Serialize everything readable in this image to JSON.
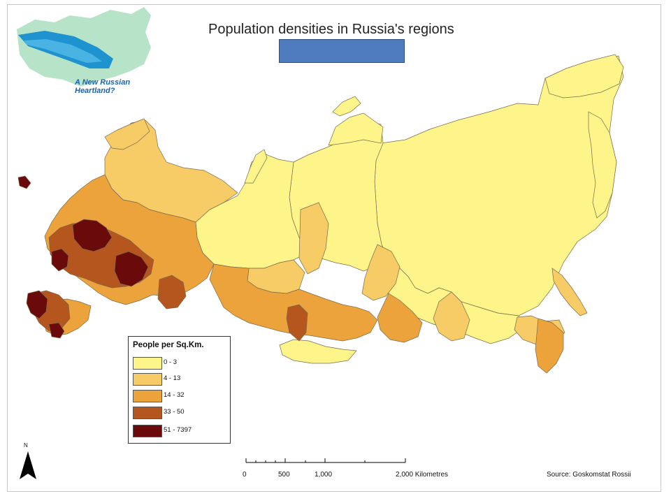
{
  "title": "Population densities in Russia's regions",
  "logo": {
    "line1": "A New Russian",
    "line2": "Heartland?"
  },
  "legend": {
    "title": "People per Sq.Km.",
    "classes": [
      {
        "label": "0 - 3",
        "color": "#fdf48a"
      },
      {
        "label": "4 - 13",
        "color": "#f7cc66"
      },
      {
        "label": "14 - 32",
        "color": "#eca33c"
      },
      {
        "label": "33 - 50",
        "color": "#b4561d"
      },
      {
        "label": "51 - 7397",
        "color": "#6a0a0a"
      }
    ]
  },
  "north_arrow": {
    "label": "N"
  },
  "scale_bar": {
    "ticks": [
      "0",
      "500",
      "1,000",
      "2,000 Kilometres"
    ]
  },
  "source": "Source: Goskomstat Rossii",
  "colors": {
    "accent_box": "#4f7bbf",
    "water_light": "#b9e3d3",
    "logo_highlight": "#1f92d0"
  }
}
